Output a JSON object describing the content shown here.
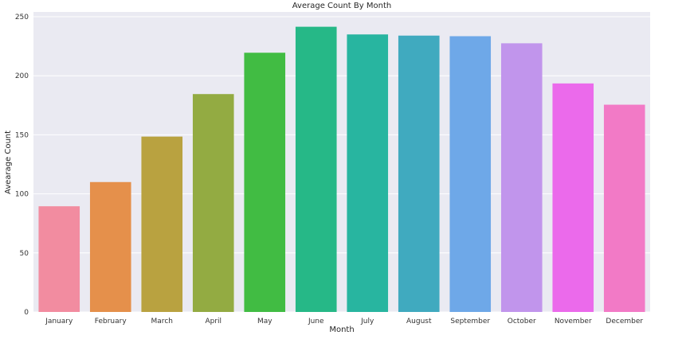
{
  "chart_data": {
    "type": "bar",
    "title": "Average Count By Month",
    "xlabel": "Month",
    "ylabel": "Avearage Count",
    "categories": [
      "January",
      "February",
      "March",
      "April",
      "May",
      "June",
      "July",
      "August",
      "September",
      "October",
      "November",
      "December"
    ],
    "values": [
      89.5,
      110,
      148.5,
      184.5,
      219.5,
      241.5,
      235,
      234,
      233.5,
      227.5,
      193.5,
      175.5
    ],
    "colors": [
      "#f28ca0",
      "#e5904b",
      "#b9a240",
      "#93ab42",
      "#41bc43",
      "#26b887",
      "#28b5a0",
      "#40aabf",
      "#6ea8e8",
      "#c195ec",
      "#eb6aeb",
      "#f27ac6"
    ],
    "ylim": [
      0,
      250
    ],
    "yticks": [
      0,
      50,
      100,
      150,
      200,
      250
    ],
    "grid": true,
    "background": "#eaeaf2"
  }
}
